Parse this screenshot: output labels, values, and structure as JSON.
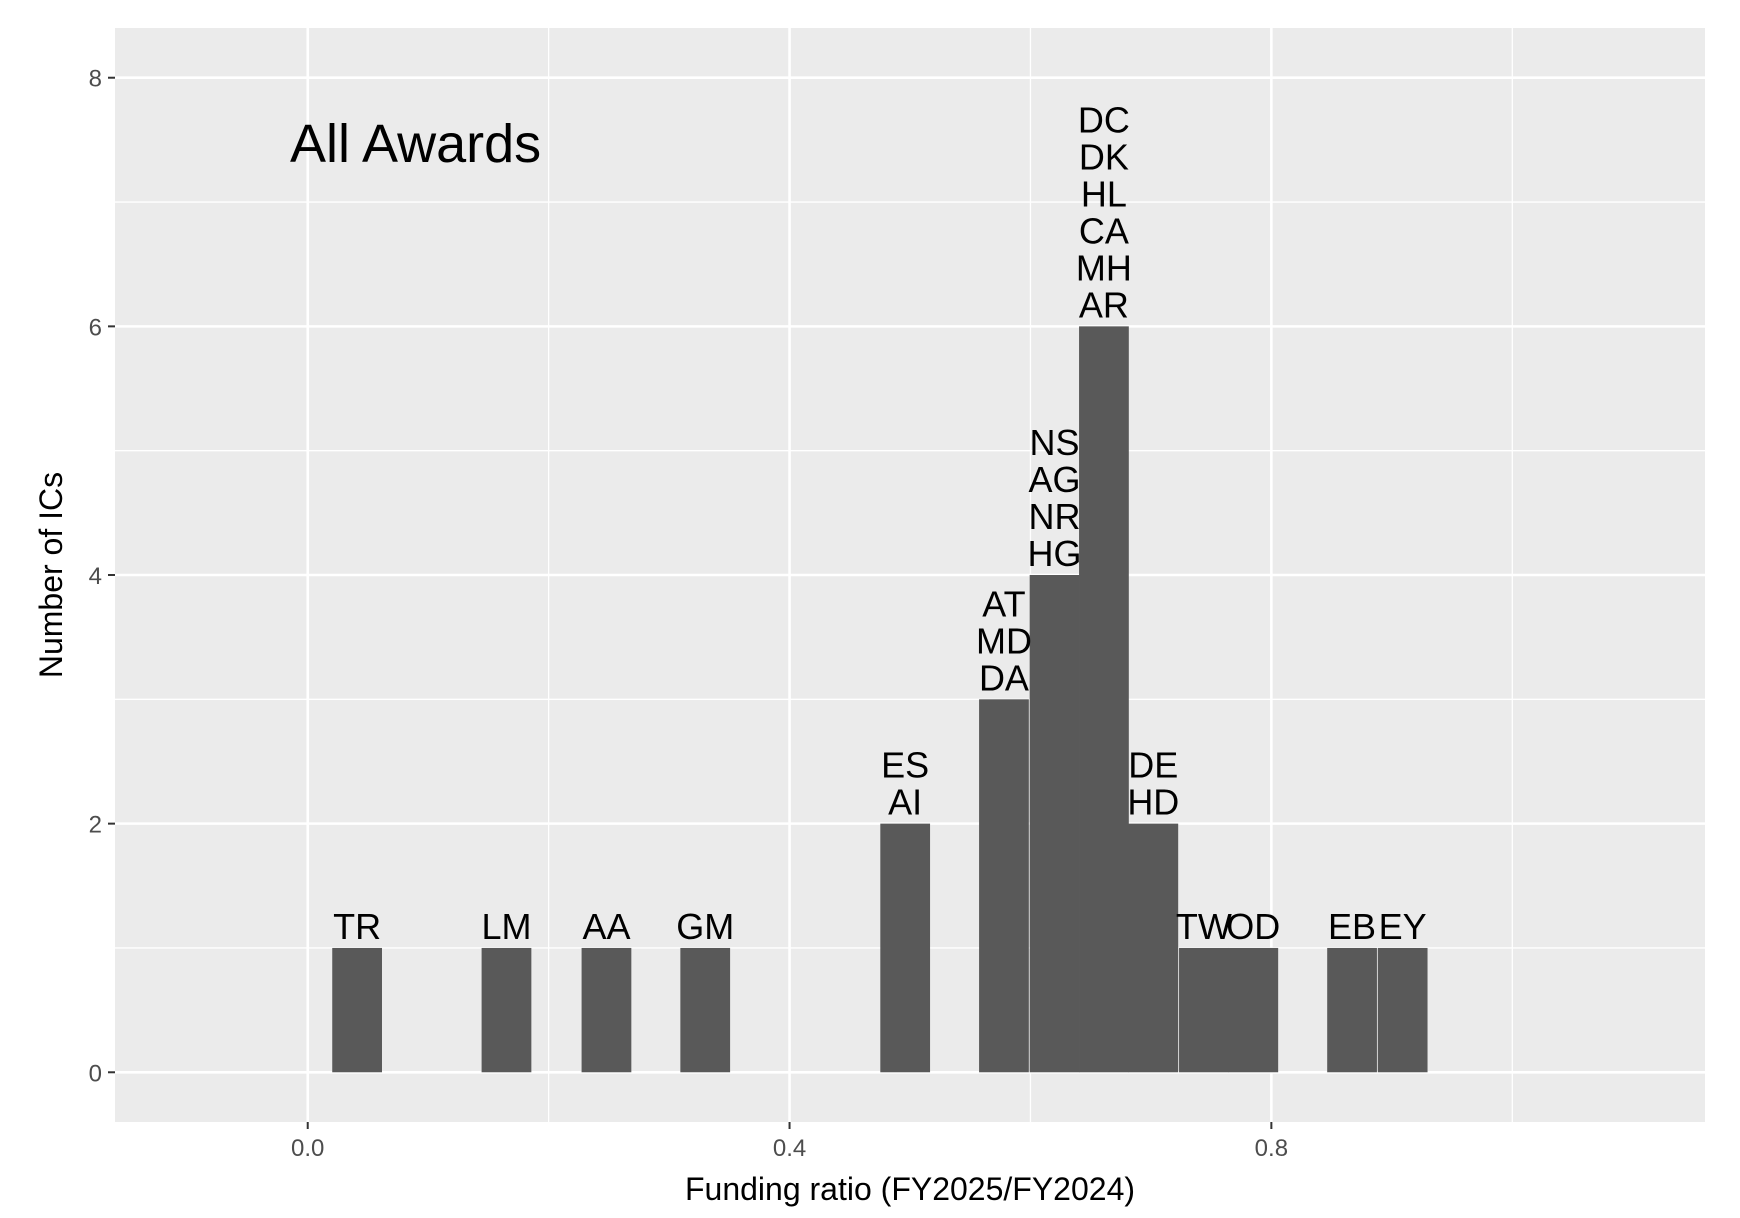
{
  "chart_data": {
    "type": "bar",
    "title": "",
    "annotation": "All Awards",
    "xlabel": "Funding ratio (FY2025/FY2024)",
    "ylabel": "Number of ICs",
    "xlim": [
      -0.16,
      1.16
    ],
    "ylim": [
      -0.4,
      8.4
    ],
    "xticks": [
      0.0,
      0.4,
      0.8
    ],
    "xtick_labels": [
      "0.0",
      "0.4",
      "0.8"
    ],
    "yticks": [
      0,
      2,
      4,
      6,
      8
    ],
    "ytick_labels": [
      "0",
      "2",
      "4",
      "6",
      "8"
    ],
    "bin_width": 0.0413,
    "grid": true,
    "colors": {
      "panel": "#ebebeb",
      "bar": "#595959",
      "grid": "#ffffff"
    },
    "bins": [
      {
        "center": 0.041,
        "count": 1,
        "labels": [
          "TR"
        ]
      },
      {
        "center": 0.165,
        "count": 1,
        "labels": [
          "LM"
        ]
      },
      {
        "center": 0.248,
        "count": 1,
        "labels": [
          "AA"
        ]
      },
      {
        "center": 0.33,
        "count": 1,
        "labels": [
          "GM"
        ]
      },
      {
        "center": 0.496,
        "count": 2,
        "labels": [
          "ES",
          "AI"
        ]
      },
      {
        "center": 0.578,
        "count": 3,
        "labels": [
          "AT",
          "MD",
          "DA"
        ]
      },
      {
        "center": 0.62,
        "count": 4,
        "labels": [
          "NS",
          "AG",
          "NR",
          "HG"
        ]
      },
      {
        "center": 0.661,
        "count": 6,
        "labels": [
          "DC",
          "DK",
          "HL",
          "CA",
          "MH",
          "AR"
        ]
      },
      {
        "center": 0.702,
        "count": 2,
        "labels": [
          "DE",
          "HD"
        ]
      },
      {
        "center": 0.744,
        "count": 1,
        "labels": [
          "TW"
        ]
      },
      {
        "center": 0.785,
        "count": 1,
        "labels": [
          "OD"
        ]
      },
      {
        "center": 0.867,
        "count": 1,
        "labels": [
          "EB"
        ]
      },
      {
        "center": 0.909,
        "count": 1,
        "labels": [
          "EY"
        ]
      }
    ]
  }
}
